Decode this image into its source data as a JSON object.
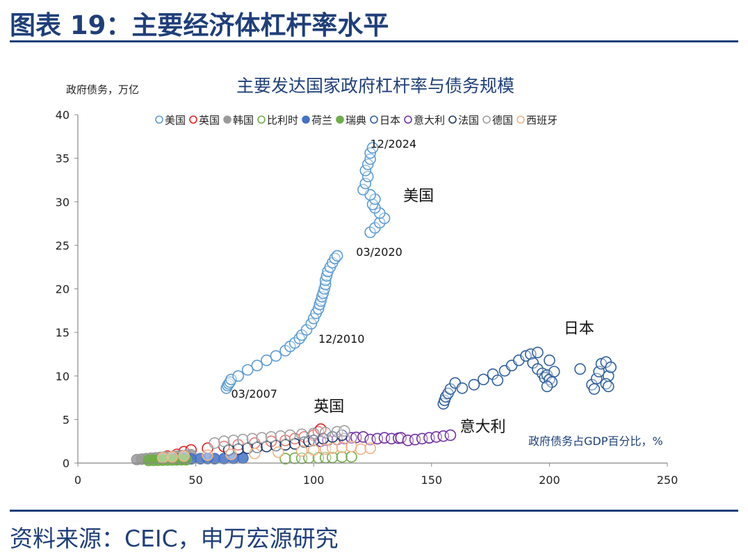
{
  "header": {
    "figure_title": "图表 19：主要经济体杠杆率水平"
  },
  "footer": {
    "source": "资料来源：CEIC，申万宏源研究"
  },
  "chart_data": {
    "type": "scatter",
    "title": "主要发达国家政府杠杆率与债务规模",
    "ylabel": "政府债务，万亿",
    "xlabel": "政府债务占GDP百分比，%",
    "xlim": [
      0,
      250
    ],
    "ylim": [
      0,
      40
    ],
    "x_ticks": [
      "0",
      "50",
      "100",
      "150",
      "200",
      "250"
    ],
    "y_ticks": [
      "0",
      "5",
      "10",
      "15",
      "20",
      "25",
      "30",
      "35",
      "40"
    ],
    "grid": false,
    "legend_placement": "top",
    "series": [
      {
        "name": "美国",
        "color": "#5b9bd5",
        "filled": false,
        "points": [
          [
            63,
            8.6
          ],
          [
            63.5,
            8.9
          ],
          [
            64,
            9.1
          ],
          [
            64.5,
            9.3
          ],
          [
            65,
            9.6
          ],
          [
            68,
            10.0
          ],
          [
            72,
            10.7
          ],
          [
            76,
            11.2
          ],
          [
            80,
            11.8
          ],
          [
            84,
            12.3
          ],
          [
            88,
            12.9
          ],
          [
            90,
            13.4
          ],
          [
            92,
            13.8
          ],
          [
            94,
            14.3
          ],
          [
            95,
            14.7
          ],
          [
            97,
            15.3
          ],
          [
            99,
            16.0
          ],
          [
            100,
            16.6
          ],
          [
            101,
            17.2
          ],
          [
            102,
            17.7
          ],
          [
            102.5,
            18.2
          ],
          [
            103,
            18.6
          ],
          [
            103.5,
            19.1
          ],
          [
            104,
            19.5
          ],
          [
            104.5,
            20.0
          ],
          [
            105,
            20.5
          ],
          [
            105,
            21.0
          ],
          [
            105.5,
            21.5
          ],
          [
            106,
            22.0
          ],
          [
            107,
            22.5
          ],
          [
            108,
            23.0
          ],
          [
            109,
            23.5
          ],
          [
            110,
            23.8
          ],
          [
            124,
            26.5
          ],
          [
            126,
            27.0
          ],
          [
            128,
            27.6
          ],
          [
            130,
            28.1
          ],
          [
            128,
            28.7
          ],
          [
            126,
            29.3
          ],
          [
            125,
            29.7
          ],
          [
            126,
            30.3
          ],
          [
            124,
            30.8
          ],
          [
            121,
            31.4
          ],
          [
            122,
            32.1
          ],
          [
            123,
            32.9
          ],
          [
            122,
            33.6
          ],
          [
            123,
            34.3
          ],
          [
            124,
            34.9
          ],
          [
            124,
            35.6
          ],
          [
            125,
            36.2
          ]
        ]
      },
      {
        "name": "英国",
        "color": "#e02020",
        "filled": false,
        "points": [
          [
            38,
            0.8
          ],
          [
            42,
            1.0
          ],
          [
            45,
            1.3
          ],
          [
            48,
            1.5
          ],
          [
            55,
            1.7
          ],
          [
            62,
            1.9
          ],
          [
            68,
            2.1
          ],
          [
            75,
            2.3
          ],
          [
            82,
            2.5
          ],
          [
            88,
            2.6
          ],
          [
            92,
            2.8
          ],
          [
            96,
            3.0
          ],
          [
            100,
            3.2
          ],
          [
            102,
            3.6
          ],
          [
            103,
            3.9
          ]
        ]
      },
      {
        "name": "韩国",
        "color": "#9a9a9a",
        "filled": true,
        "points": [
          [
            25,
            0.4
          ],
          [
            27,
            0.45
          ],
          [
            29,
            0.5
          ],
          [
            31,
            0.55
          ],
          [
            33,
            0.6
          ],
          [
            35,
            0.65
          ],
          [
            37,
            0.7
          ],
          [
            40,
            0.75
          ],
          [
            42,
            0.8
          ],
          [
            44,
            0.85
          ],
          [
            46,
            0.9
          ],
          [
            48,
            0.95
          ]
        ]
      },
      {
        "name": "比利时",
        "color": "#70ad47",
        "filled": false,
        "points": [
          [
            88,
            0.5
          ],
          [
            92,
            0.55
          ],
          [
            95,
            0.55
          ],
          [
            98,
            0.6
          ],
          [
            102,
            0.6
          ],
          [
            105,
            0.62
          ],
          [
            108,
            0.65
          ],
          [
            112,
            0.7
          ],
          [
            116,
            0.72
          ]
        ]
      },
      {
        "name": "荷兰",
        "color": "#4472c4",
        "filled": true,
        "points": [
          [
            42,
            0.45
          ],
          [
            45,
            0.45
          ],
          [
            48,
            0.48
          ],
          [
            52,
            0.5
          ],
          [
            55,
            0.52
          ],
          [
            58,
            0.5
          ],
          [
            62,
            0.52
          ],
          [
            66,
            0.55
          ],
          [
            70,
            0.58
          ]
        ]
      },
      {
        "name": "瑞典",
        "color": "#70ad47",
        "filled": true,
        "points": [
          [
            30,
            0.3
          ],
          [
            32,
            0.32
          ],
          [
            34,
            0.33
          ],
          [
            36,
            0.34
          ],
          [
            38,
            0.35
          ],
          [
            40,
            0.36
          ],
          [
            42,
            0.37
          ],
          [
            44,
            0.38
          ],
          [
            46,
            0.38
          ]
        ]
      },
      {
        "name": "日本",
        "color": "#2e5f9e",
        "filled": false,
        "points": [
          [
            155,
            6.8
          ],
          [
            155.5,
            7.2
          ],
          [
            156,
            7.6
          ],
          [
            157,
            8.0
          ],
          [
            158,
            8.5
          ],
          [
            160,
            9.2
          ],
          [
            163,
            8.6
          ],
          [
            168,
            9.0
          ],
          [
            172,
            9.6
          ],
          [
            176,
            10.2
          ],
          [
            178,
            9.5
          ],
          [
            181,
            10.6
          ],
          [
            184,
            11.2
          ],
          [
            187,
            11.8
          ],
          [
            190,
            12.3
          ],
          [
            192,
            12.5
          ],
          [
            195,
            12.7
          ],
          [
            193,
            11.5
          ],
          [
            195,
            10.8
          ],
          [
            197,
            10.3
          ],
          [
            198,
            9.8
          ],
          [
            199,
            10.1
          ],
          [
            200,
            9.6
          ],
          [
            201,
            9.3
          ],
          [
            199,
            8.8
          ],
          [
            202,
            10.5
          ],
          [
            200,
            11.8
          ],
          [
            213,
            10.8
          ],
          [
            218,
            9.0
          ],
          [
            219,
            8.5
          ],
          [
            220,
            9.7
          ],
          [
            221,
            10.5
          ],
          [
            222,
            11.4
          ],
          [
            224,
            11.6
          ],
          [
            225,
            10.0
          ],
          [
            224,
            9.1
          ],
          [
            225,
            8.8
          ],
          [
            226,
            11.0
          ]
        ]
      },
      {
        "name": "意大利",
        "color": "#7030a0",
        "filled": false,
        "points": [
          [
            103,
            2.5
          ],
          [
            106,
            2.6
          ],
          [
            110,
            2.7
          ],
          [
            113,
            2.8
          ],
          [
            116,
            2.9
          ],
          [
            118,
            2.95
          ],
          [
            121,
            3.0
          ],
          [
            124,
            2.7
          ],
          [
            127,
            2.8
          ],
          [
            130,
            2.9
          ],
          [
            133,
            2.8
          ],
          [
            136,
            2.85
          ],
          [
            137,
            2.9
          ],
          [
            140,
            2.6
          ],
          [
            143,
            2.7
          ],
          [
            146,
            2.8
          ],
          [
            149,
            2.9
          ],
          [
            152,
            3.0
          ],
          [
            155,
            3.1
          ],
          [
            158,
            3.2
          ]
        ]
      },
      {
        "name": "法国",
        "color": "#1f3864",
        "filled": false,
        "points": [
          [
            64,
            1.5
          ],
          [
            68,
            1.6
          ],
          [
            72,
            1.7
          ],
          [
            76,
            1.8
          ],
          [
            80,
            1.9
          ],
          [
            84,
            2.0
          ],
          [
            88,
            2.1
          ],
          [
            92,
            2.2
          ],
          [
            96,
            2.4
          ],
          [
            98,
            2.5
          ],
          [
            100,
            2.6
          ],
          [
            104,
            2.8
          ],
          [
            108,
            3.0
          ],
          [
            112,
            3.2
          ]
        ]
      },
      {
        "name": "德国",
        "color": "#a0a0a0",
        "filled": false,
        "points": [
          [
            58,
            2.3
          ],
          [
            62,
            2.5
          ],
          [
            66,
            2.6
          ],
          [
            70,
            2.7
          ],
          [
            74,
            2.8
          ],
          [
            78,
            2.9
          ],
          [
            82,
            3.0
          ],
          [
            86,
            3.1
          ],
          [
            90,
            3.2
          ],
          [
            95,
            3.3
          ],
          [
            100,
            3.4
          ],
          [
            105,
            3.5
          ],
          [
            110,
            3.6
          ],
          [
            113,
            3.7
          ]
        ]
      },
      {
        "name": "西班牙",
        "color": "#f4b183",
        "filled": false,
        "points": [
          [
            36,
            0.6
          ],
          [
            40,
            0.7
          ],
          [
            45,
            0.8
          ],
          [
            55,
            0.9
          ],
          [
            65,
            1.0
          ],
          [
            75,
            1.1
          ],
          [
            85,
            1.25
          ],
          [
            95,
            1.4
          ],
          [
            100,
            1.5
          ],
          [
            105,
            1.6
          ],
          [
            108,
            1.7
          ],
          [
            112,
            1.8
          ],
          [
            116,
            1.9
          ],
          [
            120,
            1.6
          ],
          [
            124,
            1.7
          ]
        ]
      }
    ],
    "annotations": [
      {
        "text": "12/2024",
        "x": 124,
        "y": 36.2
      },
      {
        "text": "美国",
        "x": 138,
        "y": 30.1
      },
      {
        "text": "03/2020",
        "x": 118,
        "y": 23.8
      },
      {
        "text": "12/2010",
        "x": 102,
        "y": 13.8
      },
      {
        "text": "03/2007",
        "x": 65,
        "y": 7.5
      },
      {
        "text": "日本",
        "x": 206,
        "y": 14.9
      },
      {
        "text": "英国",
        "x": 100,
        "y": 5.9
      },
      {
        "text": "意大利",
        "x": 162,
        "y": 3.6
      }
    ]
  }
}
